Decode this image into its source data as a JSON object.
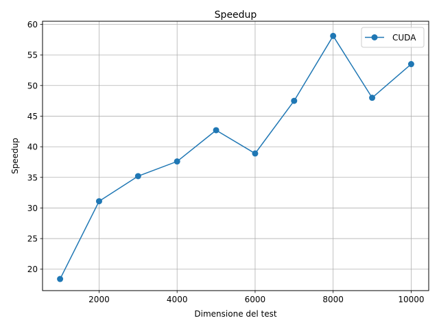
{
  "chart_data": {
    "type": "line",
    "title": "Speedup",
    "xlabel": "Dimensione del test",
    "ylabel": "Speedup",
    "xlim": [
      550,
      10450
    ],
    "ylim": [
      16.5,
      60.5
    ],
    "xticks": [
      2000,
      4000,
      6000,
      8000,
      10000
    ],
    "yticks": [
      20,
      25,
      30,
      35,
      40,
      45,
      50,
      55,
      60
    ],
    "grid": true,
    "legend_position": "top-right",
    "series": [
      {
        "name": "CUDA",
        "color": "#1f77b4",
        "marker": "circle",
        "x": [
          1000,
          2000,
          3000,
          4000,
          5000,
          6000,
          7000,
          8000,
          9000,
          10000
        ],
        "y": [
          18.4,
          31.1,
          35.2,
          37.6,
          42.7,
          38.9,
          47.5,
          58.1,
          48.0,
          53.5
        ]
      }
    ]
  }
}
